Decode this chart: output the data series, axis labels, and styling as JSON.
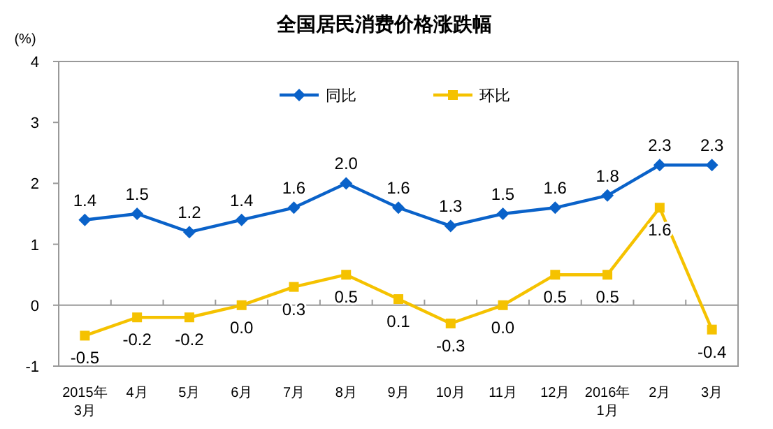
{
  "chart_data": {
    "type": "line",
    "title": "全国居民消费价格涨跌幅",
    "ylabel": "(%)",
    "categories": [
      "2015年\n3月",
      "4月",
      "5月",
      "6月",
      "7月",
      "8月",
      "9月",
      "10月",
      "11月",
      "12月",
      "2016年\n1月",
      "2月",
      "3月"
    ],
    "series": [
      {
        "name": "同比",
        "color": "#0a62c9",
        "marker": "diamond",
        "values": [
          1.4,
          1.5,
          1.2,
          1.4,
          1.6,
          2.0,
          1.6,
          1.3,
          1.5,
          1.6,
          1.8,
          2.3,
          2.3
        ],
        "value_labels": [
          "1.4",
          "1.5",
          "1.2",
          "1.4",
          "1.6",
          "2.0",
          "1.6",
          "1.3",
          "1.5",
          "1.6",
          "1.8",
          "2.3",
          "2.3"
        ]
      },
      {
        "name": "环比",
        "color": "#f5c200",
        "marker": "square",
        "values": [
          -0.5,
          -0.2,
          -0.2,
          0.0,
          0.3,
          0.5,
          0.1,
          -0.3,
          0.0,
          0.5,
          0.5,
          1.6,
          -0.4
        ],
        "value_labels": [
          "-0.5",
          "-0.2",
          "-0.2",
          "0.0",
          "0.3",
          "0.5",
          "0.1",
          "-0.3",
          "0.0",
          "0.5",
          "0.5",
          "1.6",
          "-0.4"
        ]
      }
    ],
    "ylim": [
      -1,
      4
    ],
    "yticks": [
      -1,
      0,
      1,
      2,
      3,
      4
    ],
    "ref_lines": [
      {
        "axis": "y",
        "value": 0,
        "color": "#999999"
      }
    ],
    "legend": "top",
    "grid": false,
    "line_style": "solid"
  }
}
